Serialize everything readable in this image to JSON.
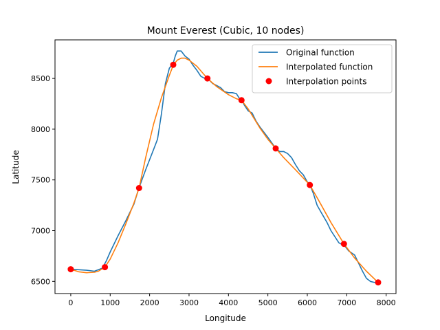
{
  "chart_data": {
    "type": "line",
    "title": "Mount Everest (Cubic, 10 nodes)",
    "xlabel": "Longitude",
    "ylabel": "Latitude",
    "xlim": [
      -400,
      8250
    ],
    "ylim": [
      6380,
      8880
    ],
    "xticks": [
      0,
      1000,
      2000,
      3000,
      4000,
      5000,
      6000,
      7000,
      8000
    ],
    "yticks": [
      6500,
      7000,
      7500,
      8000,
      8500
    ],
    "legend_position": "upper right",
    "series": [
      {
        "name": "Original function",
        "kind": "line",
        "color": "#1f77b4",
        "x": [
          0,
          200,
          400,
          600,
          800,
          900,
          1000,
          1200,
          1400,
          1600,
          1730,
          1900,
          2100,
          2200,
          2300,
          2400,
          2500,
          2600,
          2650,
          2700,
          2800,
          2900,
          3000,
          3100,
          3200,
          3300,
          3400,
          3470,
          3600,
          3700,
          3800,
          3900,
          4000,
          4100,
          4200,
          4300,
          4330,
          4400,
          4500,
          4600,
          4700,
          4800,
          5000,
          5200,
          5300,
          5400,
          5500,
          5600,
          5700,
          5800,
          5900,
          6000,
          6060,
          6150,
          6250,
          6350,
          6500,
          6600,
          6800,
          6900,
          6930,
          7050,
          7200,
          7300,
          7400,
          7500,
          7600,
          7700,
          7790
        ],
        "y": [
          6620,
          6615,
          6610,
          6600,
          6630,
          6700,
          6790,
          6950,
          7100,
          7260,
          7420,
          7600,
          7800,
          7900,
          8150,
          8450,
          8600,
          8650,
          8720,
          8770,
          8770,
          8720,
          8690,
          8630,
          8580,
          8520,
          8500,
          8500,
          8450,
          8430,
          8410,
          8370,
          8360,
          8360,
          8350,
          8290,
          8290,
          8240,
          8180,
          8160,
          8080,
          8020,
          7920,
          7810,
          7780,
          7780,
          7760,
          7720,
          7650,
          7590,
          7550,
          7480,
          7460,
          7370,
          7250,
          7180,
          7080,
          7000,
          6880,
          6860,
          6860,
          6800,
          6760,
          6680,
          6600,
          6530,
          6500,
          6490,
          6490
        ]
      },
      {
        "name": "Interpolated function",
        "kind": "line",
        "color": "#ff7f0e",
        "x": [
          0,
          200,
          400,
          600,
          700,
          866,
          1000,
          1200,
          1400,
          1600,
          1733,
          1900,
          2100,
          2300,
          2500,
          2599,
          2700,
          2800,
          2900,
          3000,
          3200,
          3466,
          3700,
          4000,
          4200,
          4332,
          4500,
          4800,
          5000,
          5198,
          5400,
          5700,
          6064,
          6300,
          6600,
          6930,
          7200,
          7500,
          7796
        ],
        "y": [
          6620,
          6595,
          6585,
          6590,
          6600,
          6640,
          6720,
          6880,
          7070,
          7270,
          7420,
          7720,
          8050,
          8310,
          8530,
          8630,
          8680,
          8700,
          8700,
          8680,
          8620,
          8500,
          8420,
          8340,
          8300,
          8285,
          8200,
          8010,
          7900,
          7810,
          7720,
          7600,
          7450,
          7290,
          7080,
          6870,
          6730,
          6600,
          6490
        ]
      },
      {
        "name": "Interpolation points",
        "kind": "scatter",
        "color": "#ff0000",
        "x": [
          0,
          866,
          1733,
          2599,
          3466,
          4332,
          5198,
          6064,
          6930,
          7796
        ],
        "y": [
          6620,
          6640,
          7420,
          8635,
          8500,
          8285,
          7810,
          7450,
          6870,
          6490
        ]
      }
    ]
  }
}
